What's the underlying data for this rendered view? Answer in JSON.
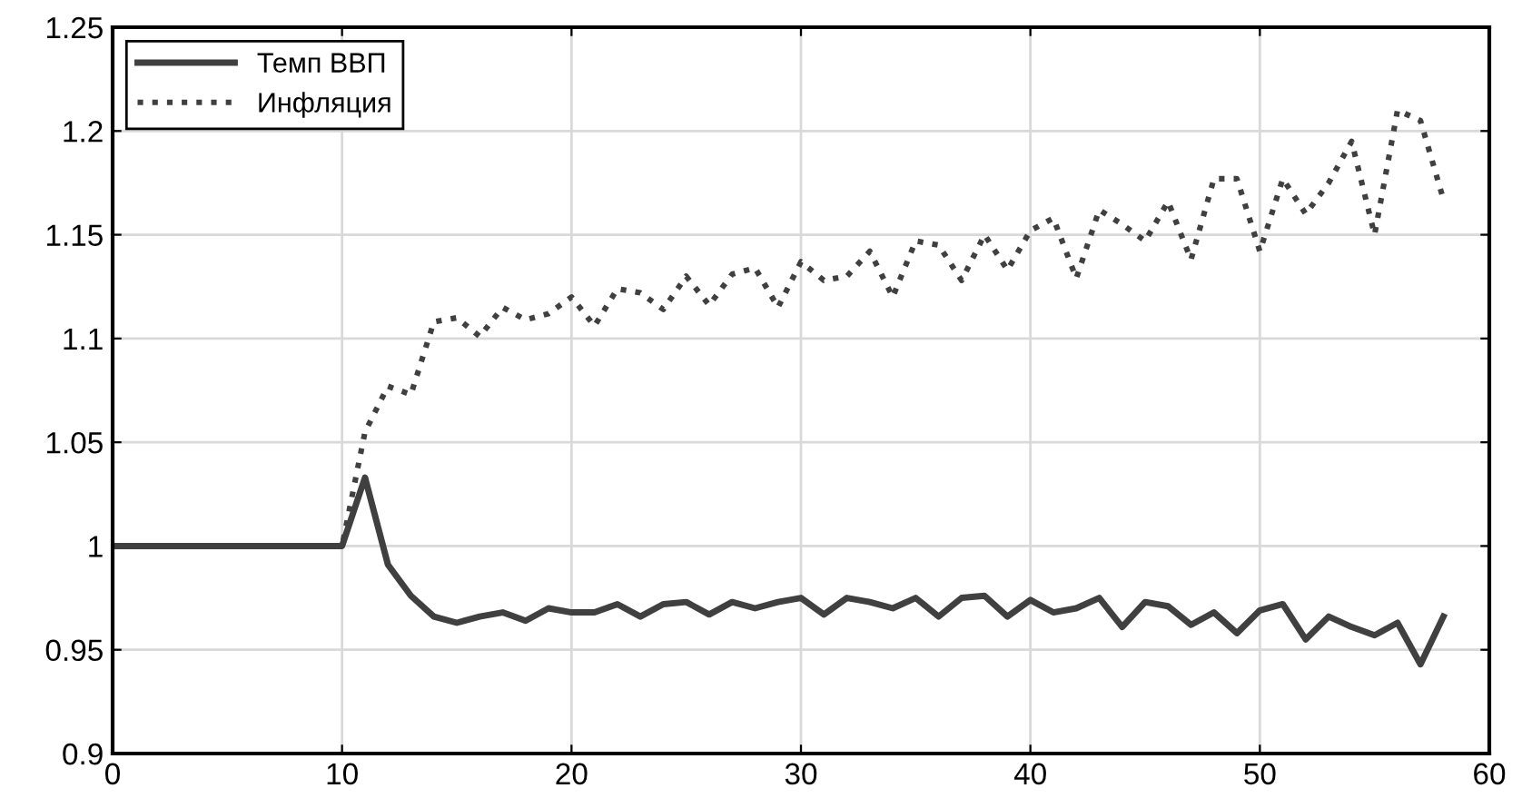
{
  "chart_data": {
    "type": "line",
    "x": [
      0,
      1,
      2,
      3,
      4,
      5,
      6,
      7,
      8,
      9,
      10,
      11,
      12,
      13,
      14,
      15,
      16,
      17,
      18,
      19,
      20,
      21,
      22,
      23,
      24,
      25,
      26,
      27,
      28,
      29,
      30,
      31,
      32,
      33,
      34,
      35,
      36,
      37,
      38,
      39,
      40,
      41,
      42,
      43,
      44,
      45,
      46,
      47,
      48,
      49,
      50,
      51,
      52,
      53,
      54,
      55,
      56,
      57,
      58
    ],
    "series": [
      {
        "name": "Темп ВВП",
        "color": "#404040",
        "line_style": "solid",
        "values": [
          1,
          1,
          1,
          1,
          1,
          1,
          1,
          1,
          1,
          1,
          1,
          1.033,
          0.991,
          0.976,
          0.966,
          0.963,
          0.966,
          0.968,
          0.964,
          0.97,
          0.968,
          0.968,
          0.972,
          0.966,
          0.972,
          0.973,
          0.967,
          0.973,
          0.97,
          0.973,
          0.975,
          0.967,
          0.975,
          0.973,
          0.97,
          0.975,
          0.966,
          0.975,
          0.976,
          0.966,
          0.974,
          0.968,
          0.97,
          0.975,
          0.961,
          0.973,
          0.971,
          0.962,
          0.968,
          0.958,
          0.969,
          0.972,
          0.955,
          0.966,
          0.961,
          0.957,
          0.963,
          0.943,
          0.966
        ]
      },
      {
        "name": "Инфляция",
        "color": "#404040",
        "line_style": "dotted",
        "values": [
          1,
          1,
          1,
          1,
          1,
          1,
          1,
          1,
          1,
          1,
          1,
          1.055,
          1.077,
          1.073,
          1.108,
          1.11,
          1.101,
          1.115,
          1.109,
          1.112,
          1.12,
          1.106,
          1.124,
          1.122,
          1.114,
          1.13,
          1.116,
          1.131,
          1.134,
          1.115,
          1.137,
          1.128,
          1.13,
          1.142,
          1.12,
          1.147,
          1.145,
          1.128,
          1.15,
          1.133,
          1.152,
          1.158,
          1.129,
          1.162,
          1.155,
          1.147,
          1.166,
          1.138,
          1.177,
          1.177,
          1.142,
          1.177,
          1.16,
          1.175,
          1.195,
          1.15,
          1.21,
          1.205,
          1.167
        ]
      }
    ],
    "xlim": [
      0,
      60
    ],
    "xticks": [
      0,
      10,
      20,
      30,
      40,
      50,
      60
    ],
    "ylim": [
      0.9,
      1.25
    ],
    "yticks": [
      0.9,
      0.95,
      1,
      1.05,
      1.1,
      1.15,
      1.2,
      1.25
    ],
    "grid": true,
    "legend": "top left"
  }
}
